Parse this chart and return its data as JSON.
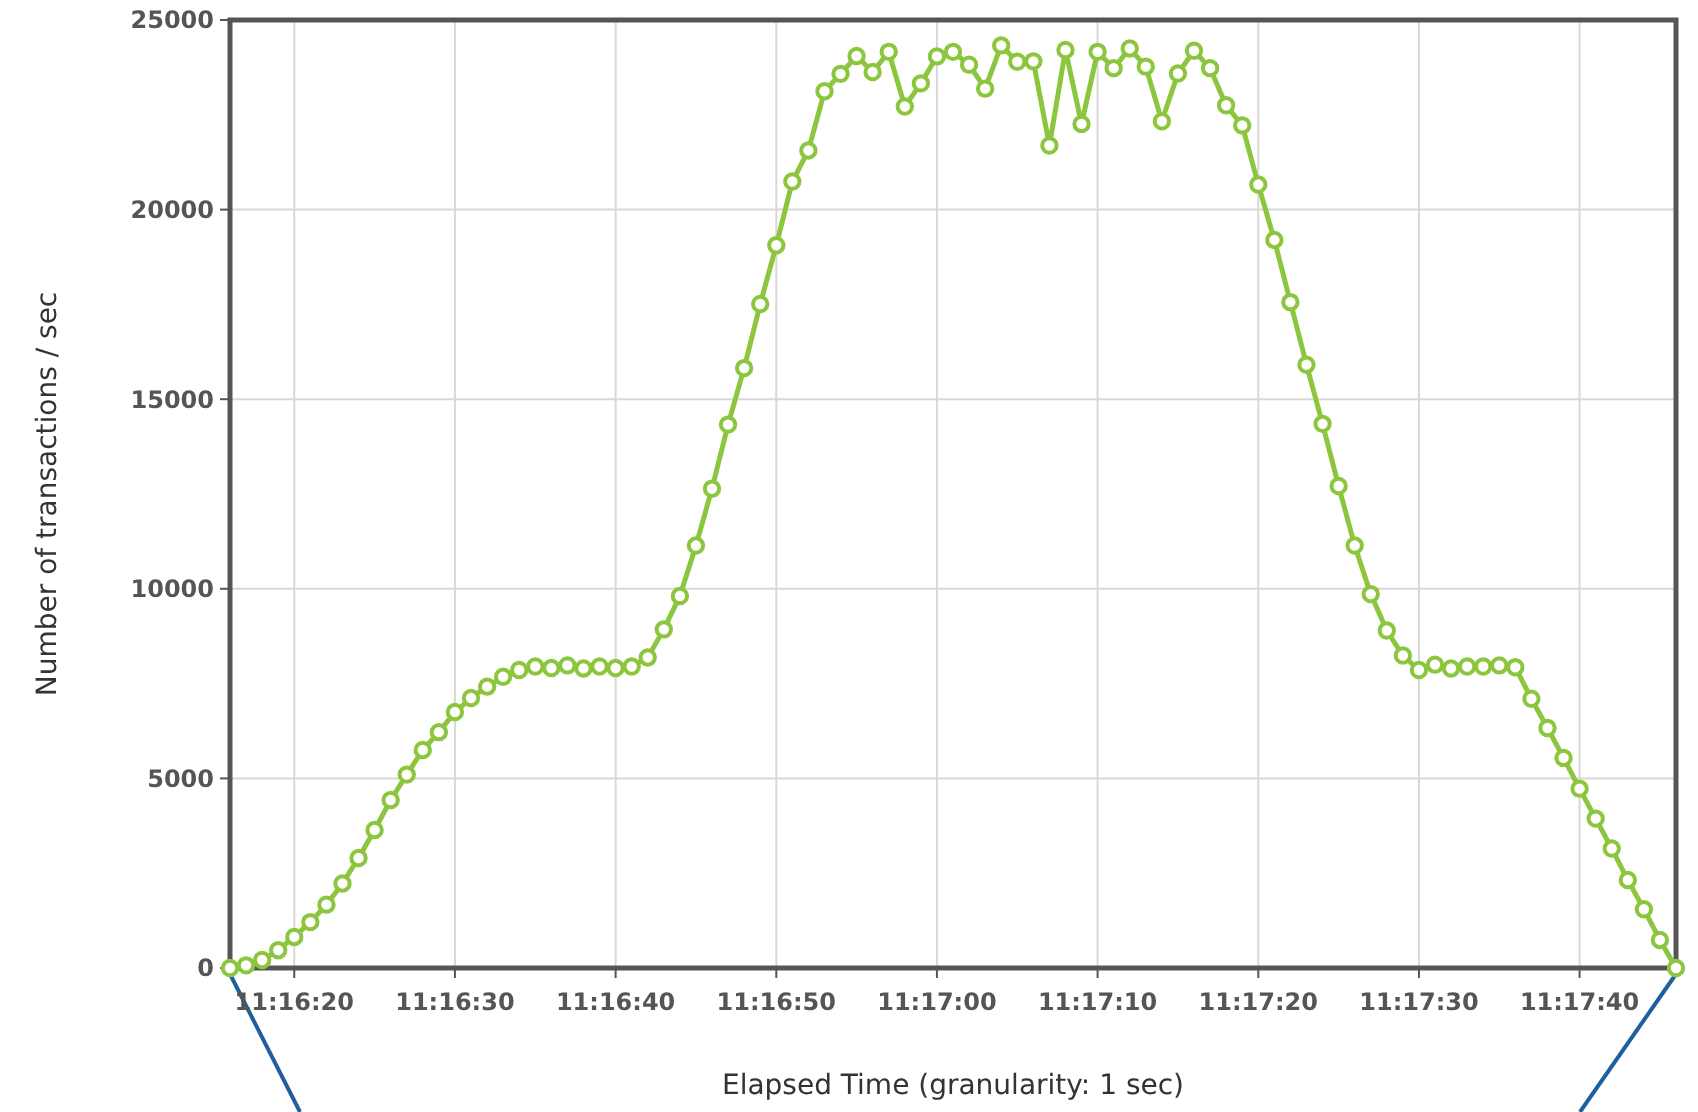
{
  "chart_data": {
    "type": "line",
    "xlabel": "Elapsed Time (granularity: 1 sec)",
    "ylabel": "Number of transactions / sec",
    "x": [
      11.271111,
      11.271389,
      11.271667,
      11.271944,
      11.272222,
      11.2725,
      11.272778,
      11.273056,
      11.273333,
      11.273611,
      11.273889,
      11.274167,
      11.274444,
      11.274722,
      11.275,
      11.275278,
      11.275556,
      11.275833,
      11.276111,
      11.276389,
      11.276667,
      11.276944,
      11.277222,
      11.2775,
      11.277778,
      11.278056,
      11.278333,
      11.278611,
      11.278889,
      11.279167,
      11.279444,
      11.279722,
      11.28,
      11.280278,
      11.280556,
      11.280833,
      11.281111,
      11.281389,
      11.281667,
      11.281944,
      11.282222,
      11.2825,
      11.282778,
      11.283056,
      11.283333,
      11.283611,
      11.283889,
      11.284167,
      11.284444,
      11.284722,
      11.285,
      11.285278,
      11.285556,
      11.285833,
      11.286111,
      11.286389,
      11.286667,
      11.286944,
      11.287222,
      11.2875,
      11.287778,
      11.288056,
      11.288333,
      11.288611,
      11.288889,
      11.289167,
      11.289444,
      11.289722,
      11.29,
      11.290278,
      11.290556,
      11.290833,
      11.291111,
      11.291389,
      11.291667,
      11.291944,
      11.292222,
      11.2925,
      11.292778,
      11.293056,
      11.293333,
      11.293611,
      11.293889,
      11.294167,
      11.294444,
      11.294722,
      11.295,
      11.295278,
      11.295556,
      11.295833,
      11.296111
    ],
    "series": [
      {
        "color": "#8cc63e",
        "values": [
          0,
          70,
          210,
          470,
          820,
          1210,
          1670,
          2230,
          2900,
          3640,
          4430,
          5100,
          5750,
          6220,
          6750,
          7120,
          7420,
          7680,
          7860,
          7950,
          7910,
          7980,
          7900,
          7950,
          7910,
          7950,
          8190,
          8930,
          9810,
          11140,
          12640,
          14330,
          15820,
          17510,
          19060,
          20740,
          21560,
          23120,
          23580,
          24050,
          23630,
          24160,
          22720,
          23330,
          24040,
          24160,
          23820,
          23190,
          24330,
          23900,
          23910,
          21690,
          24210,
          22260,
          24160,
          23730,
          24250,
          23770,
          22330,
          23590,
          24190,
          23730,
          22750,
          22220,
          20660,
          19200,
          17560,
          15910,
          14350,
          12710,
          11140,
          9860,
          8900,
          8240,
          7860,
          8000,
          7900,
          7950,
          7950,
          7980,
          7930,
          7100,
          6330,
          5540,
          4730,
          3940,
          3150,
          2320,
          1550,
          740,
          0
        ]
      }
    ],
    "xlim": [
      11.271111,
      11.296111
    ],
    "xticks": [
      {
        "value": 11.272222,
        "label": "11:16:20"
      },
      {
        "value": 11.275,
        "label": "11:16:30"
      },
      {
        "value": 11.277778,
        "label": "11:16:40"
      },
      {
        "value": 11.280556,
        "label": "11:16:50"
      },
      {
        "value": 11.283333,
        "label": "11:17:00"
      },
      {
        "value": 11.286111,
        "label": "11:17:10"
      },
      {
        "value": 11.288889,
        "label": "11:17:20"
      },
      {
        "value": 11.291667,
        "label": "11:17:30"
      },
      {
        "value": 11.294444,
        "label": "11:17:40"
      }
    ],
    "ylim": [
      0,
      25000
    ],
    "yticks": [
      0,
      5000,
      10000,
      15000,
      20000,
      25000
    ],
    "grid": true,
    "marker": "circle",
    "line_style": "solid"
  }
}
